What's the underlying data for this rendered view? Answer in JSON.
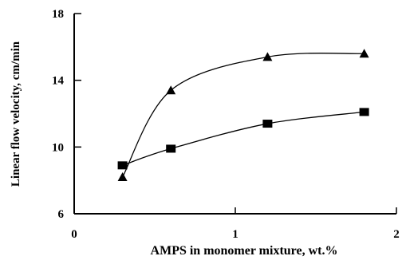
{
  "chart_data": {
    "type": "scatter",
    "title": "",
    "xlabel": "AMPS in monomer mixture, wt.%",
    "ylabel": "Linear flow velocity, cm/min",
    "xlim": [
      0,
      2
    ],
    "ylim": [
      6,
      18
    ],
    "x_ticks": [
      0,
      1,
      2
    ],
    "y_ticks": [
      6,
      10,
      14,
      18
    ],
    "grid": false,
    "legend": "none",
    "series": [
      {
        "marker": "triangle",
        "x": [
          0.3,
          0.6,
          1.2,
          1.8
        ],
        "y": [
          8.2,
          13.4,
          15.4,
          15.6
        ]
      },
      {
        "marker": "square",
        "x": [
          0.3,
          0.6,
          1.2,
          1.8
        ],
        "y": [
          8.9,
          9.9,
          11.4,
          12.1
        ]
      }
    ],
    "colors": {
      "marker": "#000000",
      "line": "#000000",
      "axis": "#000000"
    }
  }
}
